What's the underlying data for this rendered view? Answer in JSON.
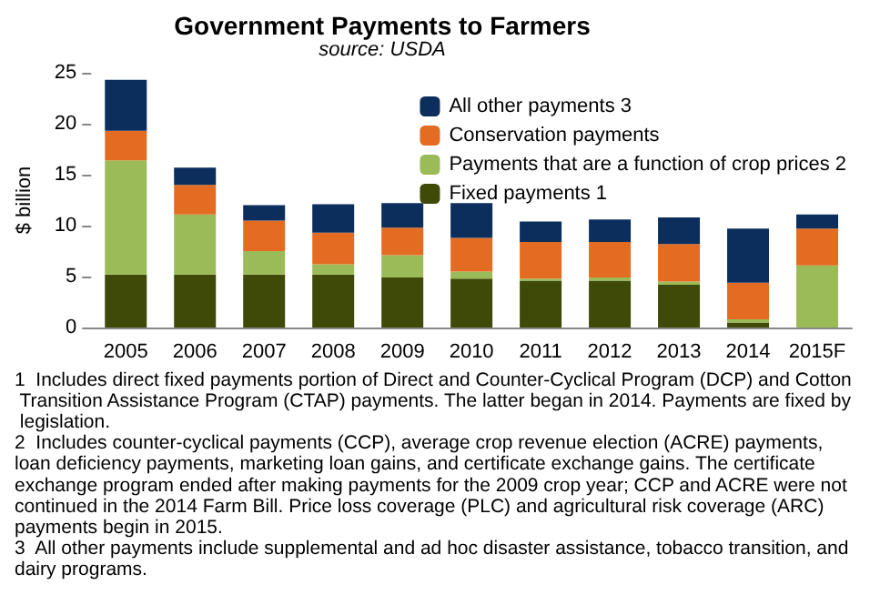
{
  "chart_data": {
    "type": "bar",
    "title": "Government Payments to Farmers",
    "subtitle": "source: USDA",
    "ylabel": "$ billion",
    "stacked": true,
    "legend": "top right",
    "grid": false,
    "ylim": [
      0,
      25
    ],
    "yticks": [
      0,
      5,
      10,
      15,
      20,
      25
    ],
    "categories": [
      "2005",
      "2006",
      "2007",
      "2008",
      "2009",
      "2010",
      "2011",
      "2012",
      "2013",
      "2014",
      "2015F"
    ],
    "series": [
      {
        "name": "Fixed payments 1",
        "color": "#3f4a08",
        "values": [
          5.2,
          5.2,
          5.2,
          5.2,
          4.9,
          4.8,
          4.6,
          4.6,
          4.2,
          0.5,
          0
        ]
      },
      {
        "name": "Payments that are a function of crop prices 2",
        "color": "#9bbb59",
        "values": [
          11.2,
          5.9,
          2.3,
          1.0,
          2.2,
          0.7,
          0.2,
          0.3,
          0.3,
          0.3,
          6.1
        ]
      },
      {
        "name": "Conservation payments",
        "color": "#e46c22",
        "values": [
          2.9,
          2.9,
          3.0,
          3.1,
          2.7,
          3.3,
          3.6,
          3.5,
          3.7,
          3.6,
          3.6
        ]
      },
      {
        "name": "All other payments 3",
        "color": "#0b2e5c",
        "values": [
          5.0,
          1.7,
          1.5,
          2.8,
          2.4,
          3.4,
          2.0,
          2.2,
          2.6,
          5.3,
          1.4
        ]
      }
    ],
    "annotations": [
      "1  Includes direct fixed payments portion of Direct and Counter-Cyclical Program (DCP) and Cotton Transition Assistance Program (CTAP) payments. The latter began in 2014. Payments are fixed by legislation.",
      "2  Includes counter-cyclical payments (CCP), average crop revenue election (ACRE) payments, loan deficiency payments, marketing loan gains, and certificate exchange gains. The certificate exchange program ended after making payments for the 2009 crop year; CCP and ACRE were not continued in the 2014 Farm Bill. Price loss coverage (PLC) and agricultural risk coverage (ARC) payments begin in 2015.",
      "3  All other payments include supplemental and ad hoc disaster assistance, tobacco transition, and dairy programs."
    ]
  }
}
